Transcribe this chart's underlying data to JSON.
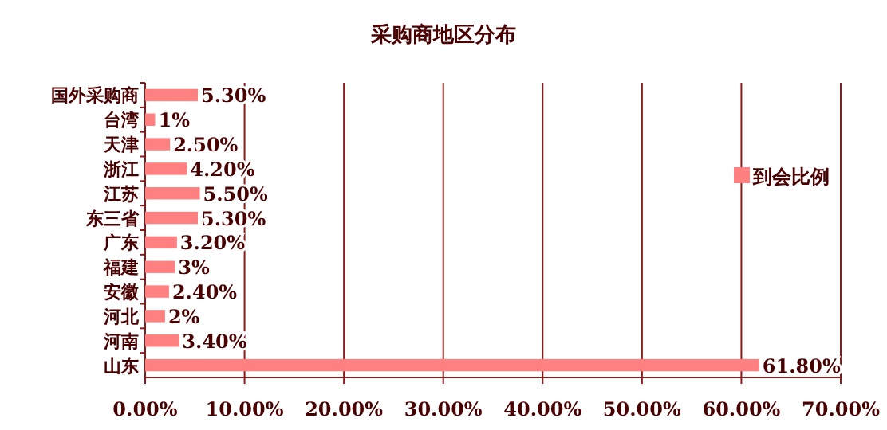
{
  "chart_data": {
    "type": "bar",
    "orientation": "horizontal",
    "title": "采购商地区分布",
    "categories": [
      "国外采购商",
      "台湾",
      "天津",
      "浙江",
      "江苏",
      "东三省",
      "广东",
      "福建",
      "安徽",
      "河北",
      "河南",
      "山东"
    ],
    "series": [
      {
        "name": "到会比例",
        "color": "#ff8080",
        "values": [
          5.3,
          1,
          2.5,
          4.2,
          5.5,
          5.3,
          3.2,
          3,
          2.4,
          2,
          3.4,
          61.8
        ],
        "value_labels": [
          "5.30%",
          "1%",
          "2.50%",
          "4.20%",
          "5.50%",
          "5.30%",
          "3.20%",
          "3%",
          "2.40%",
          "2%",
          "3.40%",
          "61.80%"
        ]
      }
    ],
    "xlim": [
      0,
      70
    ],
    "xticks": [
      {
        "value": 0,
        "label": "0.00%"
      },
      {
        "value": 10,
        "label": "10.00%"
      },
      {
        "value": 20,
        "label": "20.00%"
      },
      {
        "value": 30,
        "label": "30.00%"
      },
      {
        "value": 40,
        "label": "40.00%"
      },
      {
        "value": 50,
        "label": "50.00%"
      },
      {
        "value": 60,
        "label": "60.00%"
      },
      {
        "value": 70,
        "label": "70.00%"
      }
    ],
    "grid": "x",
    "legend": "right"
  }
}
